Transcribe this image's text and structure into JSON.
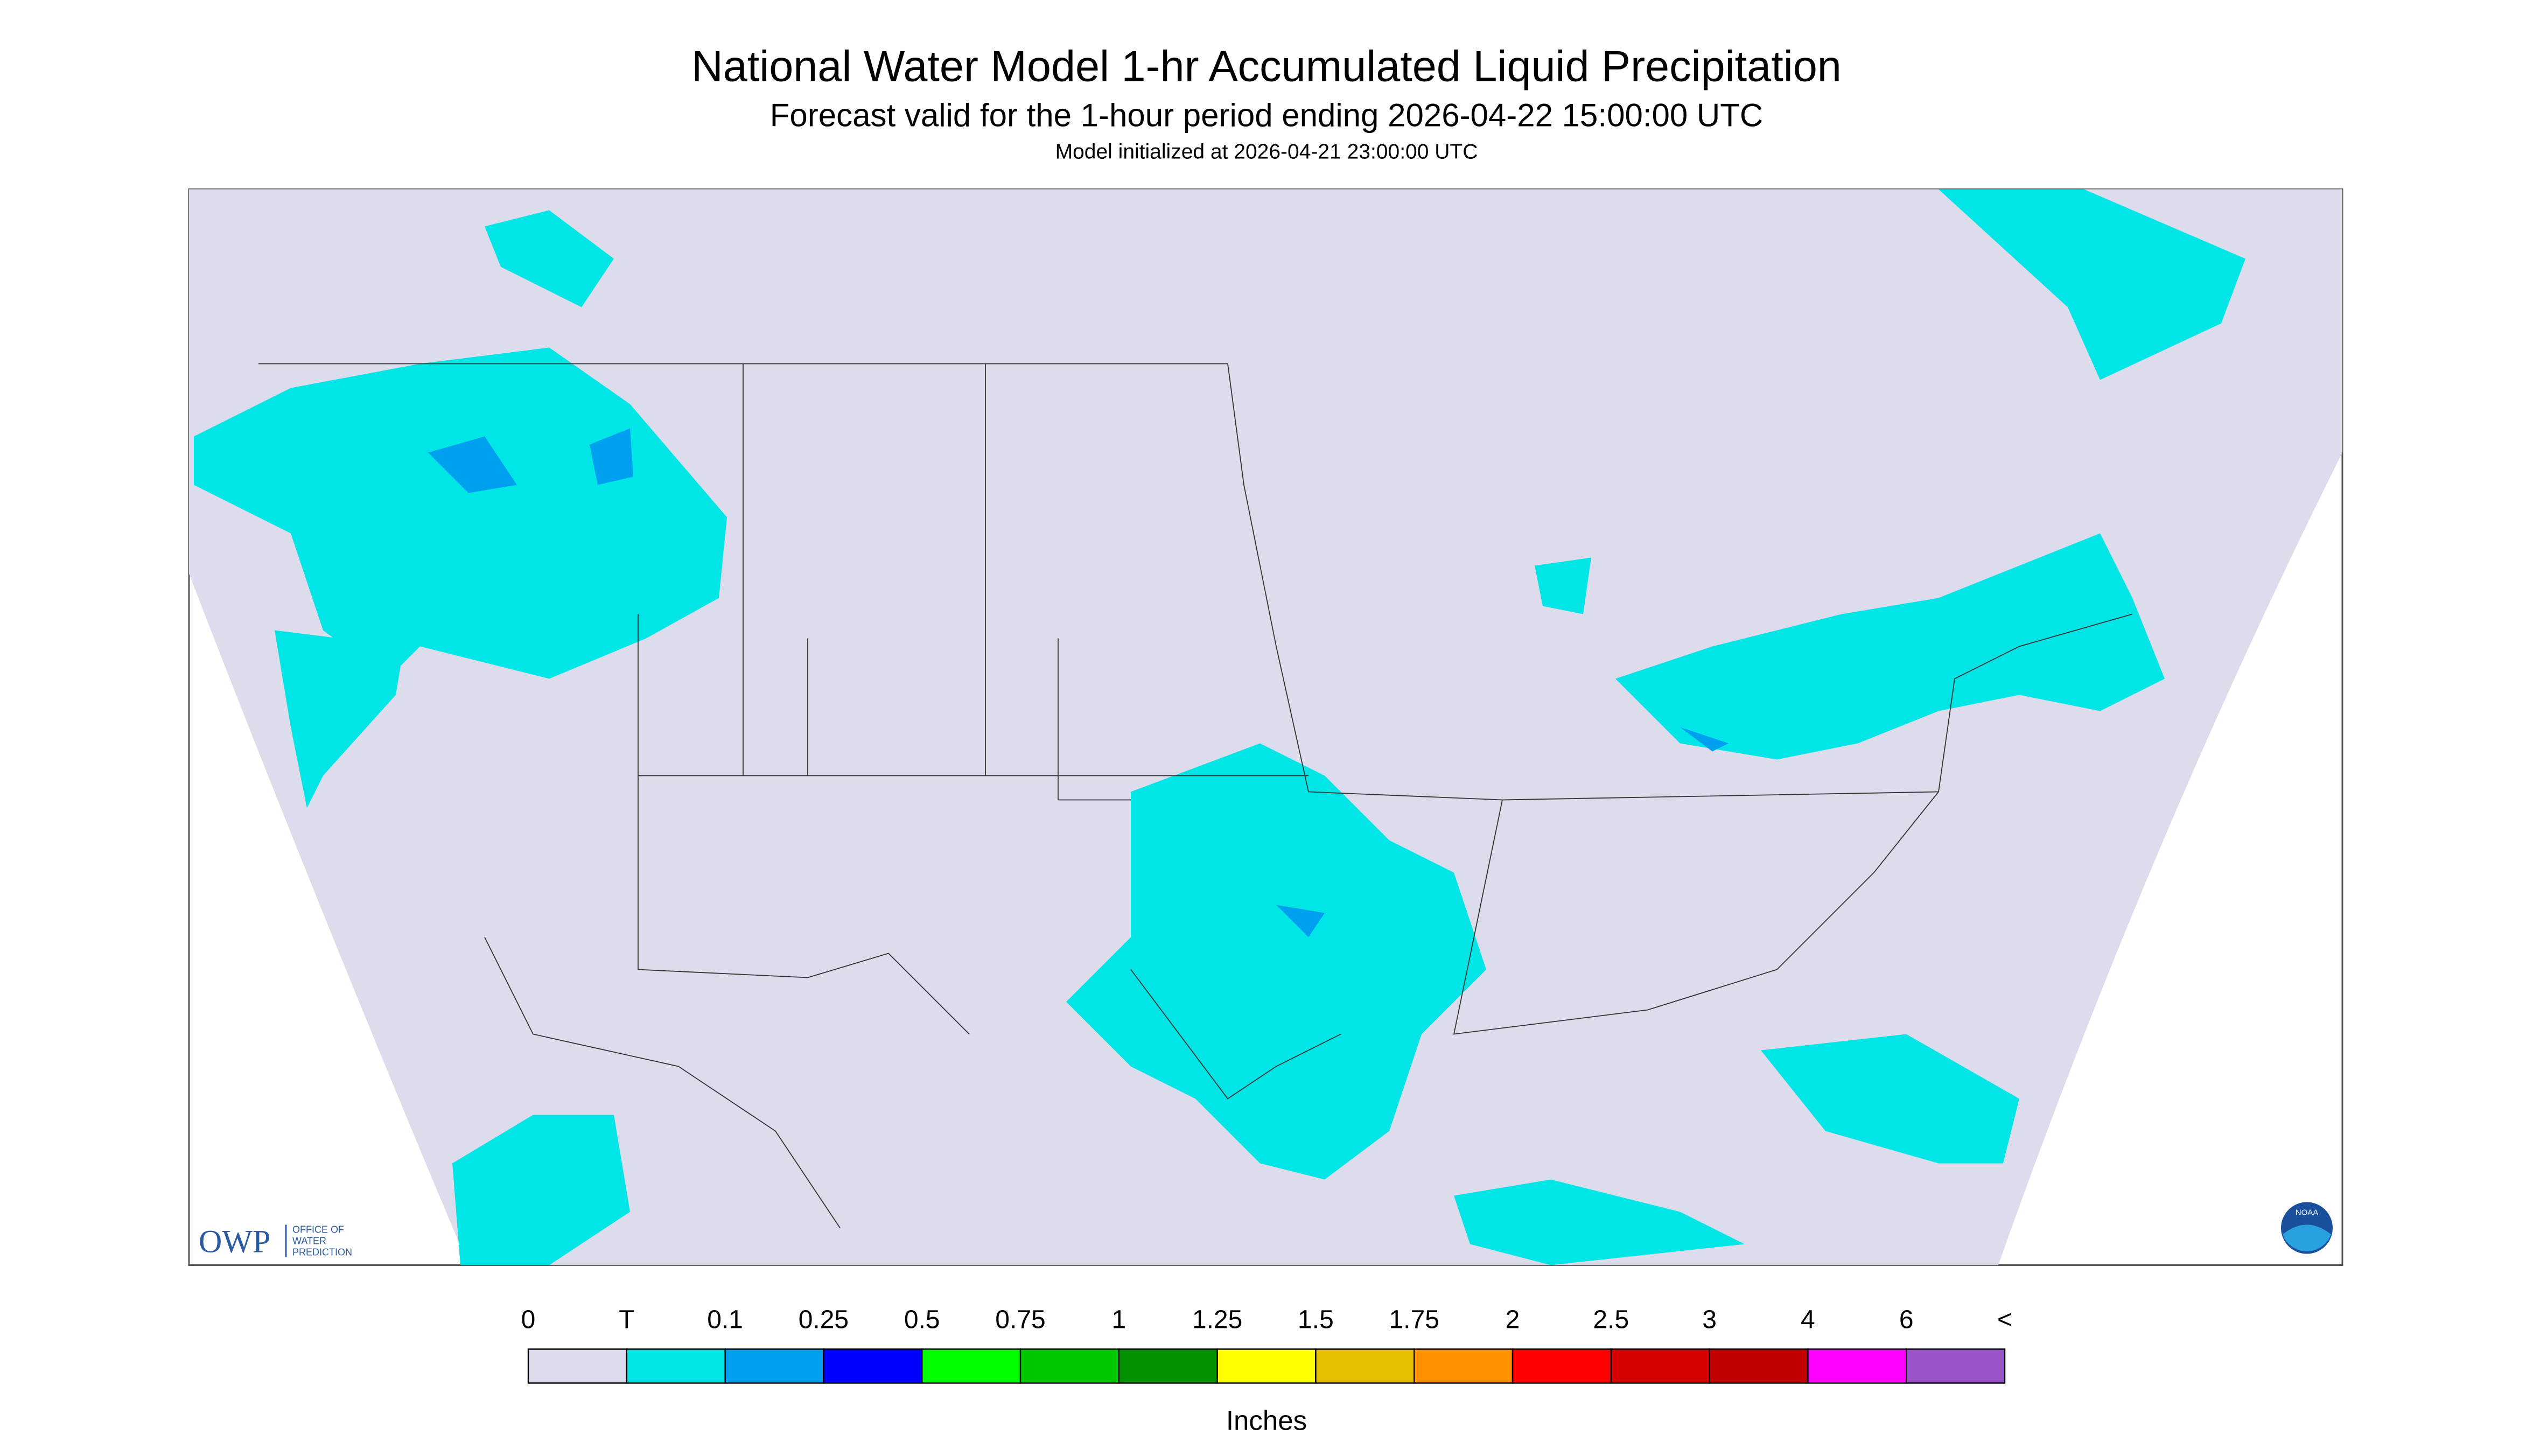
{
  "header": {
    "title": "National Water Model 1-hr Accumulated Liquid Precipitation",
    "subtitle": "Forecast valid for the 1-hour period ending 2026-04-22 15:00:00 UTC",
    "init": "Model initialized at 2026-04-21 23:00:00 UTC"
  },
  "legend": {
    "labels": [
      "0",
      "T",
      "0.1",
      "0.25",
      "0.5",
      "0.75",
      "1",
      "1.25",
      "1.5",
      "1.75",
      "2",
      "2.5",
      "3",
      "4",
      "6",
      "<"
    ],
    "colors": [
      "#dcdcec",
      "#00e5e5",
      "#00a0f0",
      "#0000ff",
      "#00ff00",
      "#00c800",
      "#009000",
      "#ffff00",
      "#e6be00",
      "#ff9000",
      "#ff0000",
      "#d70000",
      "#c00000",
      "#ff00ff",
      "#9955c9"
    ],
    "unit": "Inches"
  },
  "logos": {
    "owp": "OWP",
    "owp_text": [
      "OFFICE OF",
      "WATER",
      "PREDICTION"
    ],
    "noaa": "NOAA"
  }
}
